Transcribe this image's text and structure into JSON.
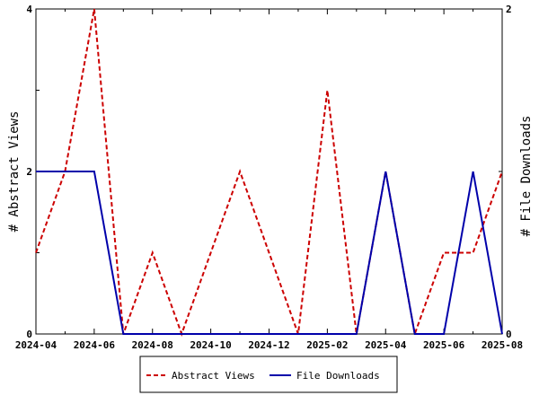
{
  "chart_data": {
    "type": "line",
    "x": [
      "2024-04",
      "2024-05",
      "2024-06",
      "2024-07",
      "2024-08",
      "2024-09",
      "2024-10",
      "2024-11",
      "2024-12",
      "2025-01",
      "2025-02",
      "2025-03",
      "2025-04",
      "2025-05",
      "2025-06",
      "2025-07",
      "2025-08"
    ],
    "x_tick_labels": [
      "2024-04",
      "2024-06",
      "2024-08",
      "2024-10",
      "2024-12",
      "2025-02",
      "2025-04",
      "2025-06",
      "2025-08"
    ],
    "series": [
      {
        "name": "Abstract Views",
        "axis": "left",
        "color": "#cc0000",
        "style": "dashed",
        "values": [
          1,
          2,
          4,
          0,
          1,
          0,
          1,
          2,
          1,
          0,
          3,
          0,
          2,
          0,
          1,
          1,
          2
        ]
      },
      {
        "name": "File Downloads",
        "axis": "right",
        "color": "#0000aa",
        "style": "solid",
        "values": [
          1,
          1,
          1,
          0,
          0,
          0,
          0,
          0,
          0,
          0,
          0,
          0,
          1,
          0,
          0,
          1,
          0
        ]
      }
    ],
    "ylabel": "# Abstract Views",
    "ylabel_right": "# File Downloads",
    "ylim": [
      0,
      4
    ],
    "ylim_right": [
      0,
      2
    ],
    "y_ticks": [
      "0",
      "2",
      "4"
    ],
    "y_ticks_right": [
      "0",
      "2"
    ],
    "grid": false,
    "legend_position": "bottom-center"
  }
}
